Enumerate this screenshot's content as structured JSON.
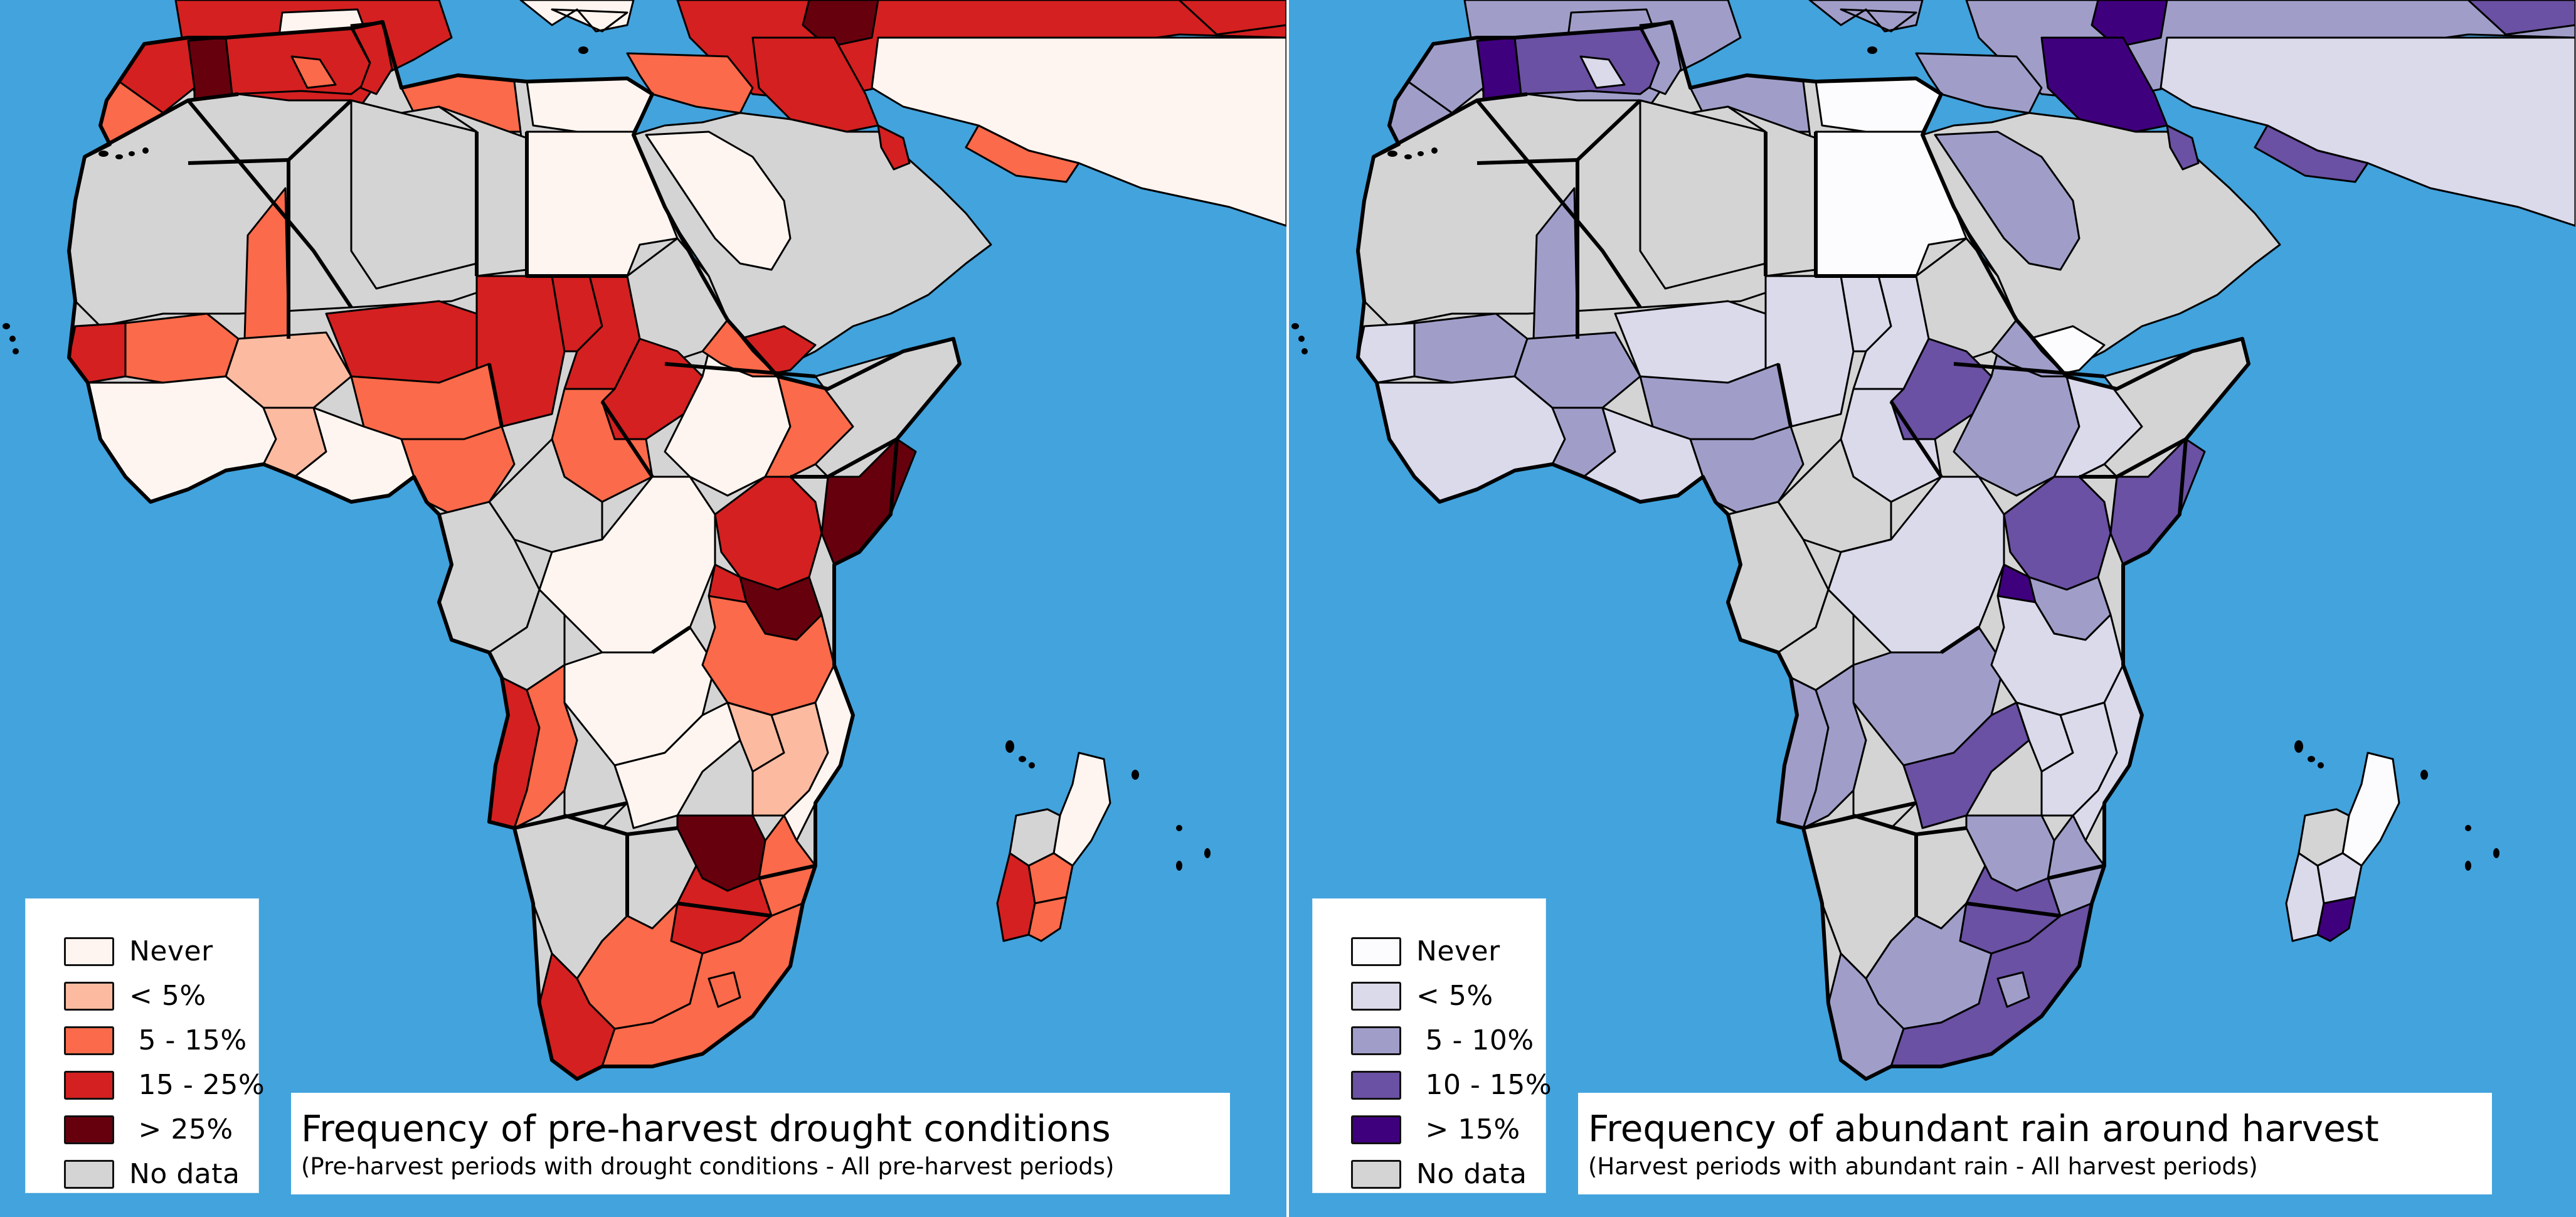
{
  "colors": {
    "ocean": "#42a3dd",
    "outline": "#000000",
    "divider": "#ffffff"
  },
  "maps": [
    {
      "id": "drought",
      "title": "Frequency of pre-harvest drought conditions",
      "subtitle": "(Pre-harvest periods with drought conditions - All pre-harvest periods)",
      "legend": [
        {
          "key": "never",
          "label": "Never",
          "color": "#fff5f0"
        },
        {
          "key": "c1",
          "label": "< 5%",
          "color": "#fcbba1"
        },
        {
          "key": "c2",
          "label": " 5 - 15%",
          "color": "#fb6a4a"
        },
        {
          "key": "c3",
          "label": " 15 - 25%",
          "color": "#d42020"
        },
        {
          "key": "c4",
          "label": " > 25%",
          "color": "#67000d"
        },
        {
          "key": "nodata",
          "label": "No data",
          "color": "#d4d4d4"
        }
      ],
      "regions": {
        "iberia": "c3",
        "iberia_center": "never",
        "italy_sicily": "never",
        "balkans_turkey": "c3",
        "turkey_east": "c4",
        "morocco_north": "c3",
        "morocco_south": "c2",
        "morocco_east": "c4",
        "algeria_north": "c3",
        "algeria_coast_pocket": "c2",
        "tunisia": "c3",
        "libya_coast": "c2",
        "egypt_delta": "never",
        "levant": "c2",
        "iraq": "c3",
        "iran": "never",
        "iran_south": "c2",
        "arabia": "nodata",
        "arabia_west": "never",
        "yemen": "c3",
        "oman_tip": "c3",
        "caucasus": "c3",
        "sahara_west": "nodata",
        "sahara_central": "nodata",
        "mauritania_east_wedge": "c2",
        "libya": "nodata",
        "egypt": "never",
        "sudan_north": "nodata",
        "senegal_gambia": "c3",
        "mali_south": "c2",
        "burkina": "c1",
        "niger_south": "c3",
        "chad_south": "c3",
        "chad_north_strip": "c3",
        "sudan_darfur": "c3",
        "west_africa_coast": "never",
        "ghana_togo": "c1",
        "nigeria_north": "c2",
        "nigeria_south": "never",
        "cameroon": "c2",
        "sudan_south": "c3",
        "south_sudan": "c2",
        "ethiopia_highlands": "never",
        "ethiopia_east": "c2",
        "eritrea": "c2",
        "somalia_north": "nodata",
        "somalia_south": "c4",
        "car": "nodata",
        "drc_north": "never",
        "drc_west": "nodata",
        "drc_south": "never",
        "gabon_congo": "nodata",
        "uganda_kenya": "c3",
        "kenya_east": "nodata",
        "tanzania": "c2",
        "tanzania_north": "c4",
        "rwanda_burundi": "c3",
        "angola_coast": "c3",
        "angola_interior": "c2",
        "angola_south": "nodata",
        "zambia": "never",
        "zambia_east": "c1",
        "malawi_mozambique": "c1",
        "mozambique_north": "never",
        "mozambique_south": "c2",
        "namibia": "nodata",
        "botswana": "nodata",
        "zimbabwe": "c4",
        "south_africa_north": "c3",
        "south_africa_west": "c2",
        "south_africa_cape": "c3",
        "south_africa_east": "c2",
        "lesotho": "c2",
        "madagascar_north": "never",
        "madagascar_west": "nodata",
        "madagascar_center": "c2",
        "madagascar_southwest": "c3",
        "madagascar_south": "c2"
      }
    },
    {
      "id": "rain",
      "title": "Frequency of abundant rain around harvest",
      "subtitle": "(Harvest periods with abundant rain - All harvest periods)",
      "legend": [
        {
          "key": "never",
          "label": "Never",
          "color": "#fcfbfd"
        },
        {
          "key": "c1",
          "label": "< 5%",
          "color": "#dadaeb"
        },
        {
          "key": "c2",
          "label": " 5 - 10%",
          "color": "#a09ec9"
        },
        {
          "key": "c3",
          "label": " 10 - 15%",
          "color": "#6a51a3"
        },
        {
          "key": "c4",
          "label": " > 15%",
          "color": "#3f007d"
        },
        {
          "key": "nodata",
          "label": "No data",
          "color": "#d4d4d4"
        }
      ],
      "regions": {
        "iberia": "c2",
        "iberia_center": "c2",
        "italy_sicily": "c2",
        "balkans_turkey": "c2",
        "turkey_east": "c4",
        "morocco_north": "c2",
        "morocco_south": "c2",
        "morocco_east": "c4",
        "algeria_north": "c3",
        "algeria_coast_pocket": "c1",
        "tunisia": "c2",
        "libya_coast": "c2",
        "egypt_delta": "never",
        "levant": "c2",
        "iraq": "c4",
        "iran": "c1",
        "iran_south": "c3",
        "arabia": "nodata",
        "arabia_west": "c2",
        "yemen": "never",
        "oman_tip": "c3",
        "caucasus": "c3",
        "sahara_west": "nodata",
        "sahara_central": "nodata",
        "mauritania_east_wedge": "c2",
        "libya": "nodata",
        "egypt": "never",
        "sudan_north": "nodata",
        "senegal_gambia": "c1",
        "mali_south": "c2",
        "burkina": "c2",
        "niger_south": "c1",
        "chad_south": "c1",
        "chad_north_strip": "c1",
        "sudan_darfur": "c1",
        "west_africa_coast": "c1",
        "ghana_togo": "c2",
        "nigeria_north": "c2",
        "nigeria_south": "c1",
        "cameroon": "c2",
        "sudan_south": "c3",
        "south_sudan": "c1",
        "ethiopia_highlands": "c2",
        "ethiopia_east": "c1",
        "eritrea": "c2",
        "somalia_north": "nodata",
        "somalia_south": "c3",
        "car": "nodata",
        "drc_north": "c1",
        "drc_west": "nodata",
        "drc_south": "c2",
        "gabon_congo": "nodata",
        "uganda_kenya": "c3",
        "kenya_east": "nodata",
        "tanzania": "c1",
        "tanzania_north": "c2",
        "rwanda_burundi": "c4",
        "angola_coast": "c2",
        "angola_interior": "c2",
        "angola_south": "nodata",
        "zambia": "c3",
        "zambia_east": "c1",
        "malawi_mozambique": "c1",
        "mozambique_north": "c1",
        "mozambique_south": "c2",
        "namibia": "nodata",
        "botswana": "nodata",
        "zimbabwe": "c2",
        "south_africa_north": "c3",
        "south_africa_west": "c2",
        "south_africa_cape": "c2",
        "south_africa_east": "c3",
        "lesotho": "c2",
        "madagascar_north": "never",
        "madagascar_west": "nodata",
        "madagascar_center": "c1",
        "madagascar_southwest": "c1",
        "madagascar_south": "c4"
      }
    }
  ]
}
